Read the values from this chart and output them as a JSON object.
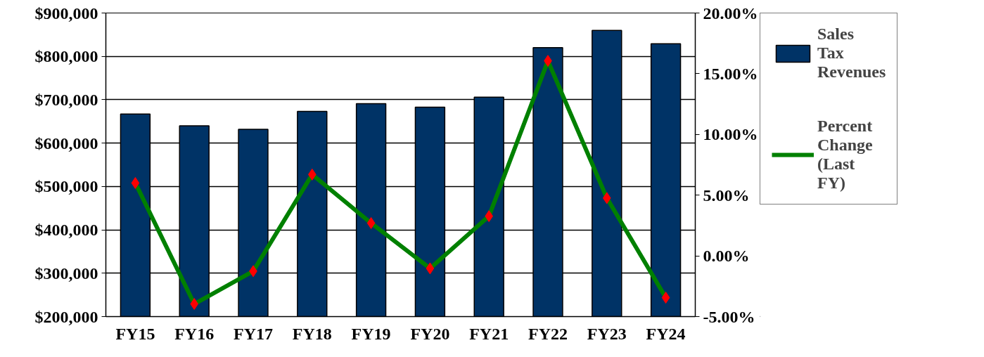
{
  "chart_data": {
    "type": "bar",
    "categories": [
      "FY15",
      "FY16",
      "FY17",
      "FY18",
      "FY19",
      "FY20",
      "FY21",
      "FY22",
      "FY23",
      "FY24"
    ],
    "series": [
      {
        "name": "Sales Tax Revenues",
        "color": "#003366",
        "values": [
          667000,
          640000,
          632000,
          673000,
          691000,
          683000,
          706000,
          820000,
          860000,
          829000
        ]
      },
      {
        "name": "Percent Change (Last FY)",
        "type": "line",
        "axis": "y2",
        "color": "#008000",
        "values": [
          6.0,
          -3.96,
          -1.26,
          6.7,
          2.7,
          -1.03,
          3.27,
          16.06,
          4.76,
          -3.44
        ]
      }
    ],
    "ylim": [
      200000,
      900000
    ],
    "yticks": [
      {
        "value": 200000,
        "label": "$200,000"
      },
      {
        "value": 300000,
        "label": "$300,000"
      },
      {
        "value": 400000,
        "label": "$400,000"
      },
      {
        "value": 500000,
        "label": "$500,000"
      },
      {
        "value": 600000,
        "label": "$600,000"
      },
      {
        "value": 700000,
        "label": "$700,000"
      },
      {
        "value": 800000,
        "label": "$800,000"
      },
      {
        "value": 900000,
        "label": "$900,000"
      }
    ],
    "y2lim": [
      -5,
      20
    ],
    "y2ticks": [
      {
        "value": -5,
        "label": "-5.00%"
      },
      {
        "value": 0,
        "label": "0.00%"
      },
      {
        "value": 5,
        "label": "5.00%"
      },
      {
        "value": 10,
        "label": "10.00%"
      },
      {
        "value": 15,
        "label": "15.00%"
      },
      {
        "value": 20,
        "label": "20.00%"
      }
    ],
    "grid": "y",
    "legend": "right",
    "marker": "diamond",
    "line_style": "solid"
  }
}
